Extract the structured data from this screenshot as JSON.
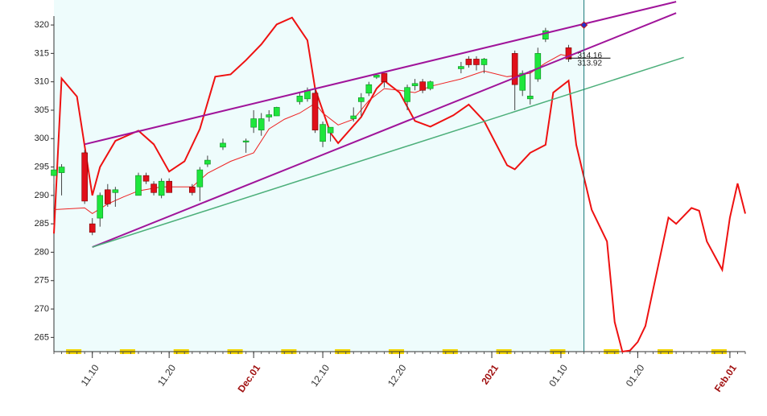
{
  "chart_data": {
    "type": "candlestick",
    "x": [
      "11.05",
      "11.06",
      "11.09",
      "11.10",
      "11.11",
      "11.12",
      "11.13",
      "11.16",
      "11.17",
      "11.18",
      "11.19",
      "11.20",
      "11.23",
      "11.24",
      "11.25",
      "11.27",
      "11.30",
      "12.01",
      "12.02",
      "12.03",
      "12.04",
      "12.07",
      "12.08",
      "12.09",
      "12.10",
      "12.11",
      "12.14",
      "12.15",
      "12.16",
      "12.17",
      "12.18",
      "12.21",
      "12.22",
      "12.23",
      "12.24",
      "12.28",
      "12.29",
      "12.30",
      "12.31",
      "01.04",
      "01.05",
      "01.06",
      "01.07",
      "01.08",
      "01.11"
    ],
    "open": [
      293.5,
      294,
      297.5,
      285,
      286,
      291,
      290.5,
      290,
      293.5,
      292,
      290,
      292.5,
      291.5,
      291.5,
      295.5,
      298.5,
      299.4,
      302,
      301.5,
      303.8,
      304,
      306.5,
      307,
      308,
      299.5,
      301,
      303.5,
      306.5,
      308,
      310.8,
      311.5,
      306.5,
      309.3,
      310,
      308.8,
      312.3,
      314,
      314,
      313,
      315,
      308.5,
      307,
      310.5,
      317.5,
      316
    ],
    "high": [
      295,
      295.5,
      298,
      286,
      290.5,
      292,
      291.5,
      294,
      294,
      292.5,
      293,
      293,
      292,
      295,
      297,
      300,
      300,
      305,
      304.5,
      305,
      305.6,
      308,
      309,
      309,
      303,
      302,
      305.5,
      308,
      310,
      311.3,
      311.5,
      309.5,
      310.5,
      310.5,
      310.2,
      313.5,
      314.5,
      314.5,
      314.2,
      315.5,
      312,
      312,
      316,
      319.5,
      316.5
    ],
    "low": [
      292,
      290,
      288.5,
      283,
      284.5,
      288,
      288,
      290,
      292,
      290,
      289.5,
      290.5,
      290,
      289,
      295,
      298,
      297.5,
      301,
      300.5,
      303,
      304,
      306,
      306.5,
      301,
      298.5,
      299.5,
      303,
      304,
      307.5,
      310.5,
      309,
      305,
      308.5,
      308,
      308.5,
      311.5,
      312.5,
      312,
      311.5,
      305,
      307.5,
      306,
      310,
      317,
      313.5
    ],
    "close": [
      294.5,
      295,
      289,
      283.5,
      290,
      288.5,
      291,
      293.5,
      292.5,
      290.5,
      292.5,
      290.5,
      290.5,
      294.5,
      296.2,
      299.2,
      299.6,
      303.5,
      303.5,
      304.2,
      305.5,
      307.5,
      308.5,
      301.5,
      302.5,
      302,
      304,
      307.2,
      309.5,
      311.2,
      310,
      309,
      309.7,
      308.5,
      310,
      312.7,
      313,
      313,
      314,
      309.5,
      311.5,
      307.5,
      315,
      319,
      314
    ],
    "up_color": "#1ee63c",
    "down_color": "#e0101a",
    "lines": [
      {
        "color": "#ee1111",
        "width": 2,
        "x": [
          "11.05",
          "11.06",
          "11.08",
          "11.10",
          "11.11",
          "11.13",
          "11.16",
          "11.18",
          "11.20",
          "11.22",
          "11.24",
          "11.26",
          "11.28",
          "11.30",
          "12.02",
          "12.04",
          "12.06",
          "12.08",
          "12.09",
          "12.11",
          "12.12",
          "12.15",
          "12.17",
          "12.18",
          "12.20",
          "12.22",
          "12.24",
          "12.27",
          "12.29",
          "12.31",
          "01.03",
          "01.04",
          "01.06",
          "01.08",
          "01.09",
          "01.11",
          "01.12",
          "01.14",
          "01.16",
          "01.17",
          "01.18",
          "01.19",
          "01.20",
          "01.21",
          "01.22",
          "01.24",
          "01.25",
          "01.27",
          "01.28",
          "01.29",
          "01.31",
          "02.01",
          "02.02",
          "02.03"
        ],
        "values": [
          283.3,
          310.6,
          307.4,
          290,
          295,
          299.6,
          301.4,
          299,
          294.2,
          296,
          301.7,
          310.9,
          311.3,
          313.8,
          316.6,
          320.1,
          321.3,
          317.3,
          308.8,
          301,
          299.2,
          303.8,
          308.8,
          310.2,
          308.1,
          303.1,
          302.1,
          304.1,
          306,
          303.1,
          295.3,
          294.6,
          297.5,
          298.9,
          308.1,
          310.2,
          298.9,
          287.5,
          281.9,
          267.7,
          262.5,
          262.7,
          264.2,
          267,
          273.4,
          286.1,
          285,
          287.8,
          287.3,
          281.9,
          276.9,
          286.1,
          292.1,
          286.8
        ]
      },
      {
        "color": "#ee2222",
        "width": 1,
        "x": [
          "11.05",
          "11.09",
          "11.10",
          "11.12",
          "11.14",
          "11.16",
          "11.19",
          "11.21",
          "11.23",
          "11.25",
          "11.28",
          "12.01",
          "12.03",
          "12.05",
          "12.07",
          "12.09",
          "12.10",
          "12.12",
          "12.14",
          "12.16",
          "12.18",
          "12.20",
          "12.22",
          "12.24",
          "12.28",
          "12.31",
          "01.03",
          "01.06",
          "01.08",
          "01.10",
          "01.11"
        ],
        "values": [
          287.5,
          287.8,
          286.8,
          288.5,
          289.7,
          290.8,
          291.5,
          291.5,
          291.5,
          293.9,
          296,
          297.5,
          301.7,
          303.4,
          304.5,
          306.2,
          304.5,
          302.4,
          303.4,
          306.7,
          308.8,
          308.5,
          308.1,
          309.2,
          310.5,
          311.9,
          310.9,
          311.5,
          313.3,
          314.8,
          314.5
        ]
      },
      {
        "color": "#a0149a",
        "width": 2,
        "x": [
          "11.09",
          "01.25"
        ],
        "values": [
          299,
          324.1
        ]
      },
      {
        "color": "#a0149a",
        "width": 2,
        "x": [
          "11.10",
          "01.25"
        ],
        "values": [
          280.9,
          322.1
        ]
      },
      {
        "color": "#4caf7a",
        "width": 1.5,
        "x": [
          "11.10",
          "01.26"
        ],
        "values": [
          280.9,
          314.3
        ]
      }
    ],
    "marker": {
      "x": "01.13",
      "value": 320
    },
    "annotations": [
      {
        "x": "01.11",
        "value": 314.16
      },
      {
        "x": "01.11",
        "value": 313.92
      }
    ],
    "xlim": [
      "11.05",
      "02.03"
    ],
    "xticks": [
      {
        "value": "11.10",
        "label": "11.10"
      },
      {
        "value": "11.20",
        "label": "11.20"
      },
      {
        "value": "12.01",
        "label": "Dec.01"
      },
      {
        "value": "12.10",
        "label": "12.10"
      },
      {
        "value": "12.20",
        "label": "12.20"
      },
      {
        "value": "01.01",
        "label": "2021"
      },
      {
        "value": "01.10",
        "label": "01.10"
      },
      {
        "value": "01.20",
        "label": "01.20"
      },
      {
        "value": "02.01",
        "label": "Feb.01"
      }
    ],
    "ylim": [
      262.5,
      324.4
    ],
    "yticks": [
      265,
      270,
      275,
      280,
      285,
      290,
      295,
      300,
      305,
      310,
      315,
      320
    ]
  }
}
